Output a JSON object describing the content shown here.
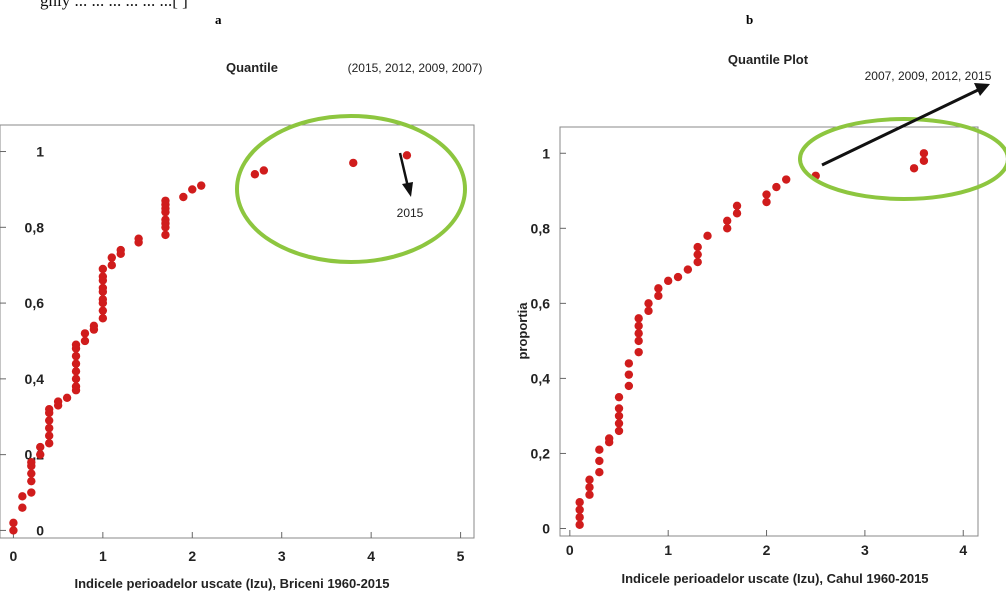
{
  "caption_fragment": "ghly ... ... ... ... ... ...[ ]",
  "chart_data": [
    {
      "panel_label": "a",
      "type": "scatter",
      "title": "Quantile",
      "annotation": "(2015, 2012, 2009, 2007)",
      "callout_label": "2015",
      "xlabel": "Indicele perioadelor uscate (Izu), Briceni 1960-2015",
      "ylabel": "",
      "xlim": [
        -0.15,
        5.15
      ],
      "ylim": [
        -0.02,
        1.07
      ],
      "xticks": [
        "0",
        "1",
        "2",
        "3",
        "4",
        "5"
      ],
      "yticks": [
        "0",
        "0,2",
        "0,4",
        "0,6",
        "0,8",
        "1"
      ],
      "grid": false,
      "marker_color": "#d01c1c",
      "highlight_color": "#8dc63f",
      "x": [
        0.0,
        0.0,
        0.1,
        0.1,
        0.2,
        0.2,
        0.2,
        0.2,
        0.2,
        0.3,
        0.3,
        0.4,
        0.4,
        0.4,
        0.4,
        0.4,
        0.4,
        0.5,
        0.5,
        0.6,
        0.7,
        0.7,
        0.7,
        0.7,
        0.7,
        0.7,
        0.7,
        0.7,
        0.8,
        0.8,
        0.9,
        0.9,
        1.0,
        1.0,
        1.0,
        1.0,
        1.0,
        1.0,
        1.0,
        1.0,
        1.0,
        1.1,
        1.1,
        1.2,
        1.2,
        1.4,
        1.4,
        1.7,
        1.7,
        1.7,
        1.7,
        1.7,
        1.7,
        1.7,
        1.7,
        1.9,
        2.0,
        2.1,
        2.7,
        2.8,
        3.8,
        4.4
      ],
      "y": [
        0.0,
        0.02,
        0.06,
        0.09,
        0.1,
        0.13,
        0.15,
        0.17,
        0.18,
        0.2,
        0.22,
        0.23,
        0.25,
        0.27,
        0.29,
        0.31,
        0.32,
        0.33,
        0.34,
        0.35,
        0.37,
        0.38,
        0.4,
        0.42,
        0.44,
        0.46,
        0.48,
        0.49,
        0.5,
        0.52,
        0.53,
        0.54,
        0.56,
        0.58,
        0.6,
        0.61,
        0.63,
        0.64,
        0.66,
        0.67,
        0.69,
        0.7,
        0.72,
        0.73,
        0.74,
        0.76,
        0.77,
        0.78,
        0.8,
        0.81,
        0.82,
        0.84,
        0.85,
        0.86,
        0.87,
        0.88,
        0.9,
        0.91,
        0.94,
        0.95,
        0.97,
        0.99
      ]
    },
    {
      "panel_label": "b",
      "type": "scatter",
      "title": "Quantile Plot",
      "annotation": "2007, 2009, 2012, 2015",
      "xlabel": "Indicele perioadelor uscate (Izu), Cahul 1960-2015",
      "ylabel": "proportia",
      "xlim": [
        -0.1,
        4.15
      ],
      "ylim": [
        -0.02,
        1.07
      ],
      "xticks": [
        "0",
        "1",
        "2",
        "3",
        "4"
      ],
      "yticks": [
        "0",
        "0,2",
        "0,4",
        "0,6",
        "0,8",
        "1"
      ],
      "grid": false,
      "marker_color": "#d01c1c",
      "highlight_color": "#8dc63f",
      "x": [
        0.1,
        0.1,
        0.1,
        0.1,
        0.2,
        0.2,
        0.2,
        0.3,
        0.3,
        0.3,
        0.4,
        0.4,
        0.5,
        0.5,
        0.5,
        0.5,
        0.5,
        0.6,
        0.6,
        0.6,
        0.7,
        0.7,
        0.7,
        0.7,
        0.7,
        0.8,
        0.8,
        0.9,
        0.9,
        1.0,
        1.1,
        1.2,
        1.3,
        1.3,
        1.3,
        1.4,
        1.6,
        1.6,
        1.7,
        1.7,
        2.0,
        2.0,
        2.1,
        2.2,
        2.5,
        3.5,
        3.6,
        3.6
      ],
      "y": [
        0.01,
        0.03,
        0.05,
        0.07,
        0.09,
        0.11,
        0.13,
        0.15,
        0.18,
        0.21,
        0.23,
        0.24,
        0.26,
        0.28,
        0.3,
        0.32,
        0.35,
        0.38,
        0.41,
        0.44,
        0.47,
        0.5,
        0.52,
        0.54,
        0.56,
        0.58,
        0.6,
        0.62,
        0.64,
        0.66,
        0.67,
        0.69,
        0.71,
        0.73,
        0.75,
        0.78,
        0.8,
        0.82,
        0.84,
        0.86,
        0.87,
        0.89,
        0.91,
        0.93,
        0.94,
        0.96,
        0.98,
        1.0
      ]
    }
  ]
}
